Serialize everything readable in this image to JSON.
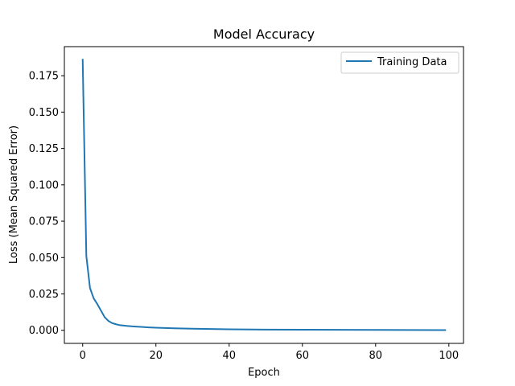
{
  "chart_data": {
    "type": "line",
    "title": "Model Accuracy",
    "xlabel": "Epoch",
    "ylabel": "Loss (Mean Squared Error)",
    "xlim": [
      -5,
      104
    ],
    "ylim": [
      -0.009,
      0.195
    ],
    "xticks": [
      0,
      20,
      40,
      60,
      80,
      100
    ],
    "yticks": [
      0.0,
      0.025,
      0.05,
      0.075,
      0.1,
      0.125,
      0.15,
      0.175
    ],
    "xtick_labels": [
      "0",
      "20",
      "40",
      "60",
      "80",
      "100"
    ],
    "ytick_labels": [
      "0.000",
      "0.025",
      "0.050",
      "0.075",
      "0.100",
      "0.125",
      "0.150",
      "0.175"
    ],
    "grid": false,
    "legend_position": "top-right",
    "series": [
      {
        "name": "Training Data",
        "color": "#1f77b4",
        "x": [
          0,
          1,
          2,
          3,
          4,
          5,
          6,
          7,
          8,
          9,
          10,
          12,
          14,
          16,
          18,
          20,
          25,
          30,
          35,
          40,
          50,
          60,
          70,
          80,
          90,
          99
        ],
        "y": [
          0.186,
          0.051,
          0.029,
          0.022,
          0.018,
          0.0135,
          0.009,
          0.0065,
          0.005,
          0.0042,
          0.0036,
          0.003,
          0.0026,
          0.0023,
          0.002,
          0.0018,
          0.0014,
          0.0011,
          0.0009,
          0.0007,
          0.0005,
          0.0004,
          0.0003,
          0.00025,
          0.0002,
          0.00015
        ]
      }
    ]
  }
}
